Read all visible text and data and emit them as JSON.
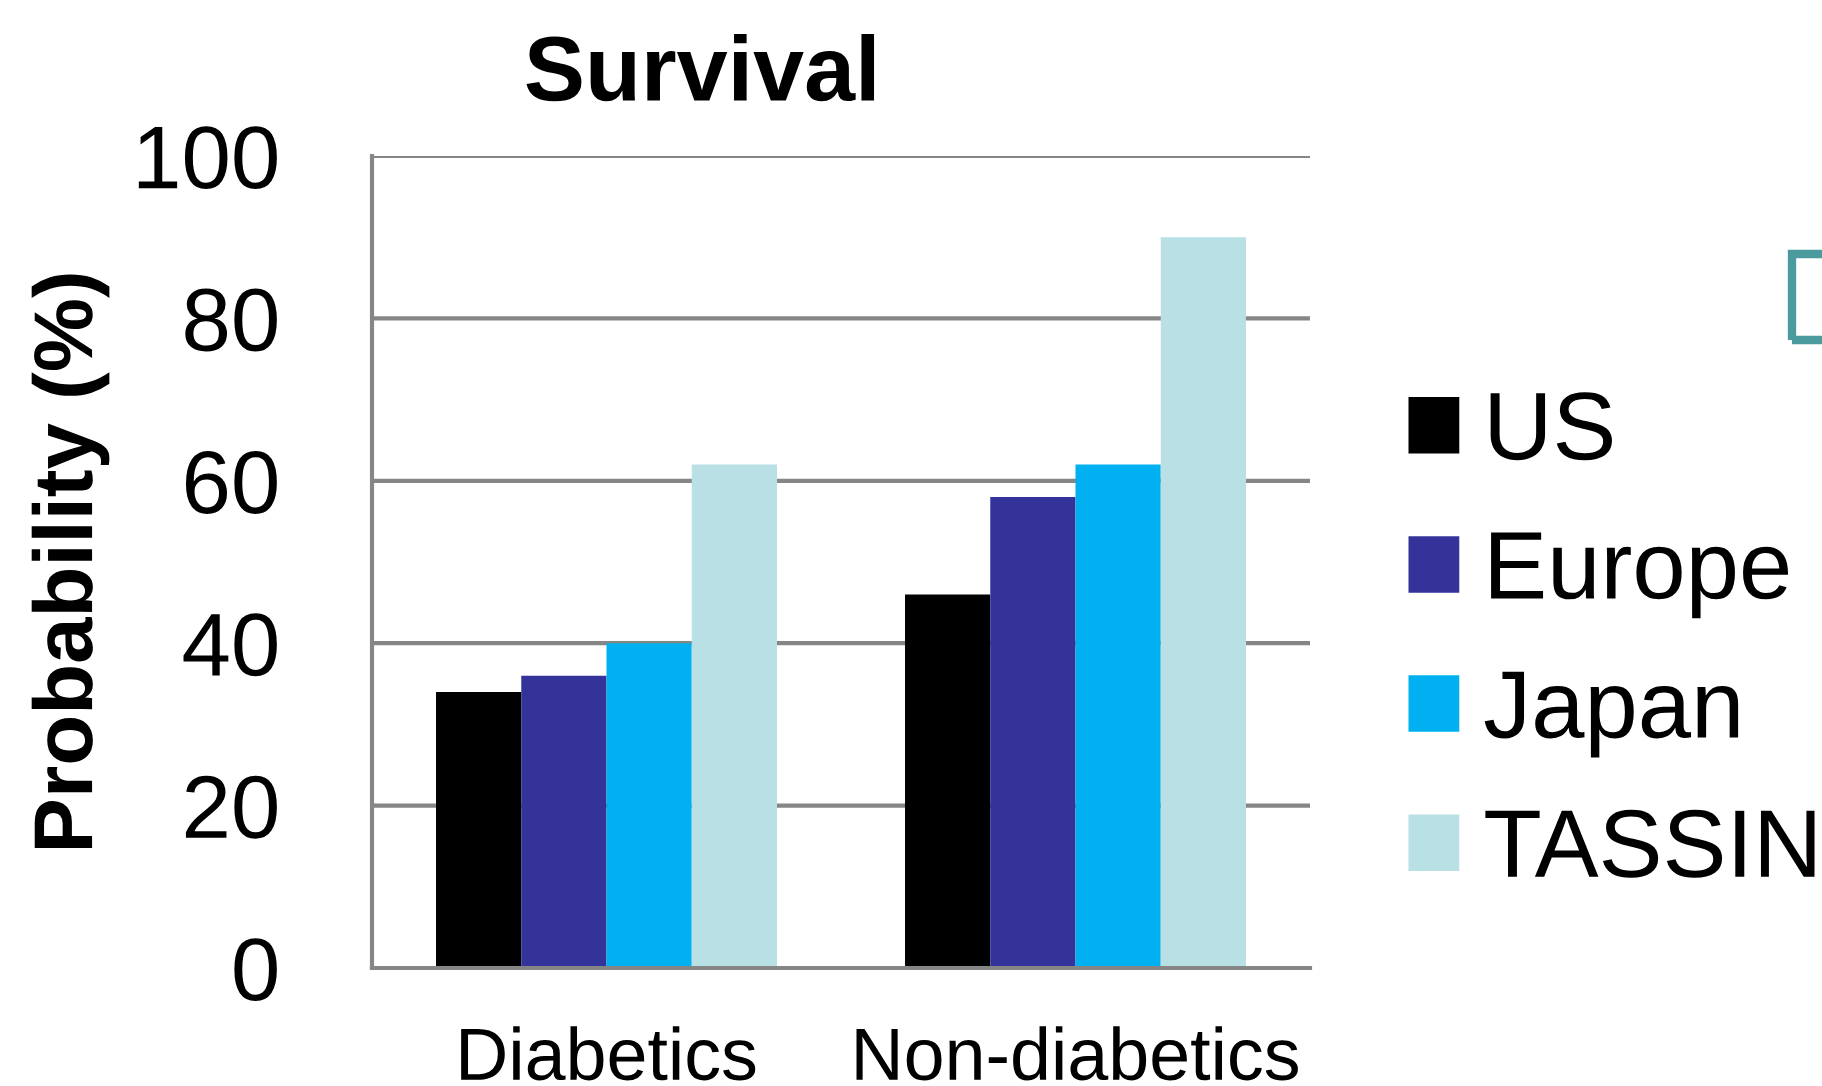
{
  "chart_data": {
    "type": "bar",
    "title": "Survival",
    "ylabel": "Probability (%)",
    "categories": [
      "Diabetics",
      "Non-diabetics"
    ],
    "series": [
      {
        "name": "US",
        "color": "#000000",
        "values": [
          34,
          46
        ]
      },
      {
        "name": "Europe",
        "color": "#333399",
        "values": [
          36,
          58
        ]
      },
      {
        "name": "Japan",
        "color": "#00b0f0",
        "values": [
          40,
          62
        ]
      },
      {
        "name": "TASSIN",
        "color": "#b9e0e4",
        "values": [
          62,
          90
        ]
      }
    ],
    "ylim": [
      0,
      100
    ],
    "yticks": [
      0,
      20,
      40,
      60,
      80,
      100
    ],
    "grid": "y",
    "legend": "right"
  }
}
